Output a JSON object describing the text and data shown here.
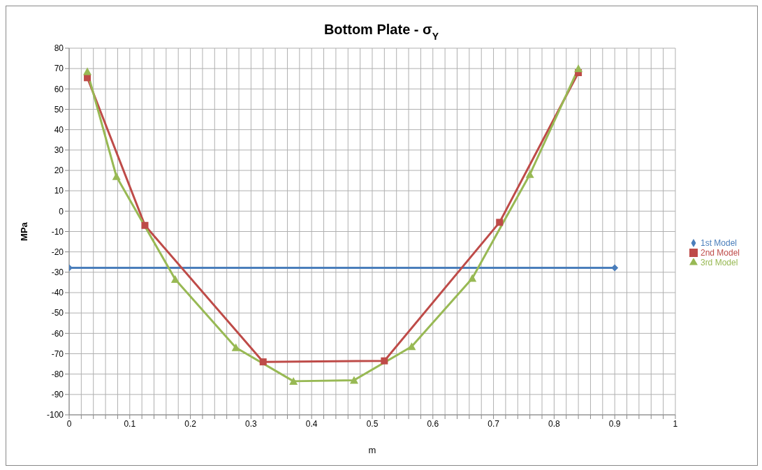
{
  "chart_data": {
    "type": "line",
    "title": "Bottom Plate - σ$_{Y}$",
    "xlabel": "m",
    "ylabel": "MPa",
    "xlim": [
      0,
      1
    ],
    "xticks": [
      0,
      {
        "value": 0.02,
        "label": null
      },
      {
        "value": 0.04,
        "label": null
      },
      {
        "value": 0.06,
        "label": null
      },
      {
        "value": 0.08,
        "label": null
      },
      0.1,
      {
        "value": 0.12,
        "label": null
      },
      {
        "value": 0.14,
        "label": null
      },
      {
        "value": 0.16,
        "label": null
      },
      {
        "value": 0.18,
        "label": null
      },
      0.2,
      {
        "value": 0.22,
        "label": null
      },
      {
        "value": 0.24,
        "label": null
      },
      {
        "value": 0.26,
        "label": null
      },
      {
        "value": 0.28,
        "label": null
      },
      0.3,
      {
        "value": 0.32,
        "label": null
      },
      {
        "value": 0.34,
        "label": null
      },
      {
        "value": 0.36,
        "label": null
      },
      {
        "value": 0.38,
        "label": null
      },
      0.4,
      {
        "value": 0.42,
        "label": null
      },
      {
        "value": 0.44,
        "label": null
      },
      {
        "value": 0.46,
        "label": null
      },
      {
        "value": 0.48,
        "label": null
      },
      0.5,
      {
        "value": 0.52,
        "label": null
      },
      {
        "value": 0.54,
        "label": null
      },
      {
        "value": 0.56,
        "label": null
      },
      {
        "value": 0.58,
        "label": null
      },
      0.6,
      {
        "value": 0.62,
        "label": null
      },
      {
        "value": 0.64,
        "label": null
      },
      {
        "value": 0.66,
        "label": null
      },
      {
        "value": 0.68,
        "label": null
      },
      0.7,
      {
        "value": 0.72,
        "label": null
      },
      {
        "value": 0.74,
        "label": null
      },
      {
        "value": 0.76,
        "label": null
      },
      {
        "value": 0.78,
        "label": null
      },
      0.8,
      {
        "value": 0.82,
        "label": null
      },
      {
        "value": 0.84,
        "label": null
      },
      {
        "value": 0.86,
        "label": null
      },
      {
        "value": 0.88,
        "label": null
      },
      0.9,
      {
        "value": 0.92,
        "label": null
      },
      {
        "value": 0.94,
        "label": null
      },
      {
        "value": 0.96,
        "label": null
      },
      {
        "value": 0.98,
        "label": null
      },
      1
    ],
    "ylim": [
      -100,
      80
    ],
    "yticks": [
      -100,
      -90,
      -80,
      -70,
      -60,
      -50,
      -40,
      -30,
      -20,
      -10,
      0,
      10,
      20,
      30,
      40,
      50,
      60,
      70,
      80
    ],
    "grid": true,
    "legend": "right",
    "series": [
      {
        "name": "1st Model",
        "color": "#4a7ebb",
        "marker": "diamond",
        "x": [
          0,
          0.9
        ],
        "values": [
          -27.8,
          -27.8
        ]
      },
      {
        "name": "2nd Model",
        "color": "#be4b48",
        "marker": "square",
        "x": [
          0.03,
          0.125,
          0.32,
          0.52,
          0.71,
          0.84
        ],
        "values": [
          65.5,
          -7,
          -74,
          -73.5,
          -5.5,
          68
        ]
      },
      {
        "name": "3rd Model",
        "color": "#98b954",
        "marker": "triangle",
        "x": [
          0.03,
          0.078,
          0.175,
          0.275,
          0.37,
          0.47,
          0.565,
          0.665,
          0.76,
          0.84
        ],
        "values": [
          68.5,
          17,
          -33.5,
          -67,
          -83.5,
          -83,
          -66.5,
          -33,
          18,
          70
        ]
      }
    ]
  }
}
